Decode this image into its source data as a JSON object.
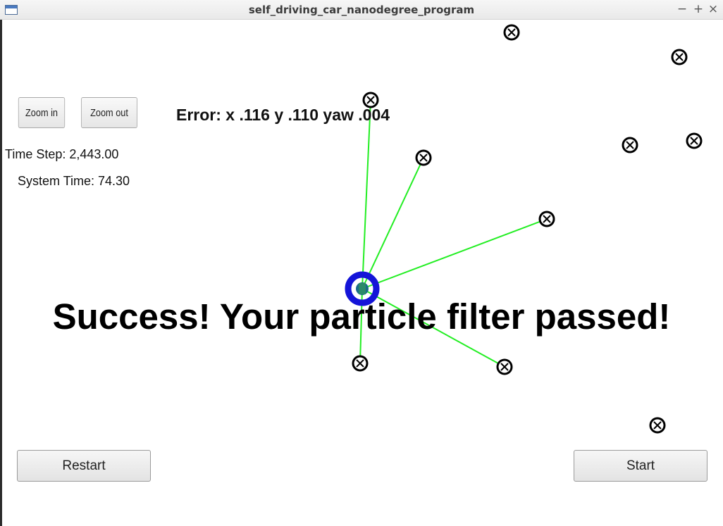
{
  "window": {
    "title": "self_driving_car_nanodegree_program",
    "controls": [
      "−",
      "+",
      "×"
    ]
  },
  "controls": {
    "zoom_in": "Zoom in",
    "zoom_out": "Zoom out",
    "restart": "Restart",
    "start": "Start"
  },
  "status": {
    "time_step": "Time Step: 2,443.00",
    "system_time": "System Time: 74.30"
  },
  "error_text": "Error: x .116 y .110 yaw .004",
  "success_message": "Success! Your particle filter passed!",
  "scene": {
    "colors": {
      "observation_line": "#22ee22",
      "vehicle": "#1414d8",
      "landmark": "#000000"
    }
  }
}
